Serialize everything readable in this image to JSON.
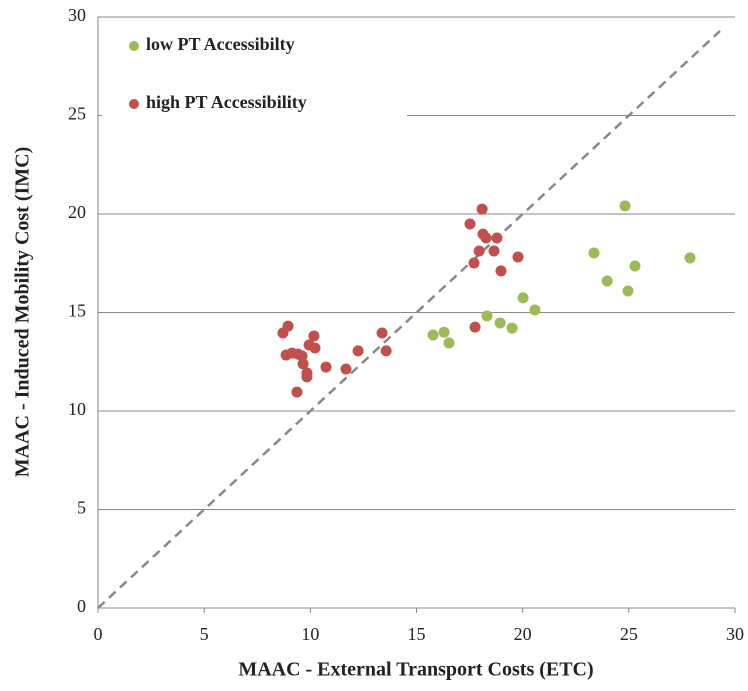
{
  "chart_data": {
    "type": "scatter",
    "xlabel": "MAAC - External Transport  Costs (ETC)",
    "ylabel": "MAAC - Induced Mobility Cost (IMC)",
    "xlim": [
      0,
      30
    ],
    "ylim": [
      0,
      30
    ],
    "xticks": [
      0,
      5,
      10,
      15,
      20,
      25,
      30
    ],
    "yticks": [
      0,
      5,
      10,
      15,
      20,
      25,
      30
    ],
    "grid": true,
    "legend": "upper left",
    "series": [
      {
        "name": "low PT Accessibilty",
        "color": "#9bbb59",
        "x": [
          15.78,
          16.3,
          16.53,
          18.32,
          18.94,
          19.5,
          20.02,
          20.58,
          23.36,
          23.98,
          24.82,
          24.96,
          25.29,
          27.88
        ],
        "y": [
          13.86,
          14.0,
          13.45,
          14.82,
          14.47,
          14.21,
          15.74,
          15.13,
          18.02,
          16.6,
          20.41,
          16.09,
          17.36,
          17.77
        ]
      },
      {
        "name": "high PT Accessibility",
        "color": "#c0504d",
        "x": [
          8.71,
          8.95,
          8.86,
          9.14,
          9.42,
          9.37,
          9.61,
          9.66,
          9.84,
          9.84,
          9.94,
          10.17,
          10.22,
          10.74,
          11.68,
          12.25,
          13.38,
          13.57,
          17.52,
          17.71,
          17.76,
          17.95,
          18.09,
          18.13,
          18.28,
          18.65,
          18.79,
          18.98,
          19.78
        ],
        "y": [
          13.96,
          14.31,
          12.84,
          12.94,
          12.89,
          10.96,
          12.79,
          12.39,
          11.93,
          11.73,
          13.35,
          13.81,
          13.2,
          12.23,
          12.13,
          13.05,
          13.96,
          13.05,
          19.49,
          17.51,
          14.26,
          18.12,
          20.25,
          18.98,
          18.78,
          18.12,
          18.78,
          17.11,
          17.82
        ]
      }
    ]
  }
}
